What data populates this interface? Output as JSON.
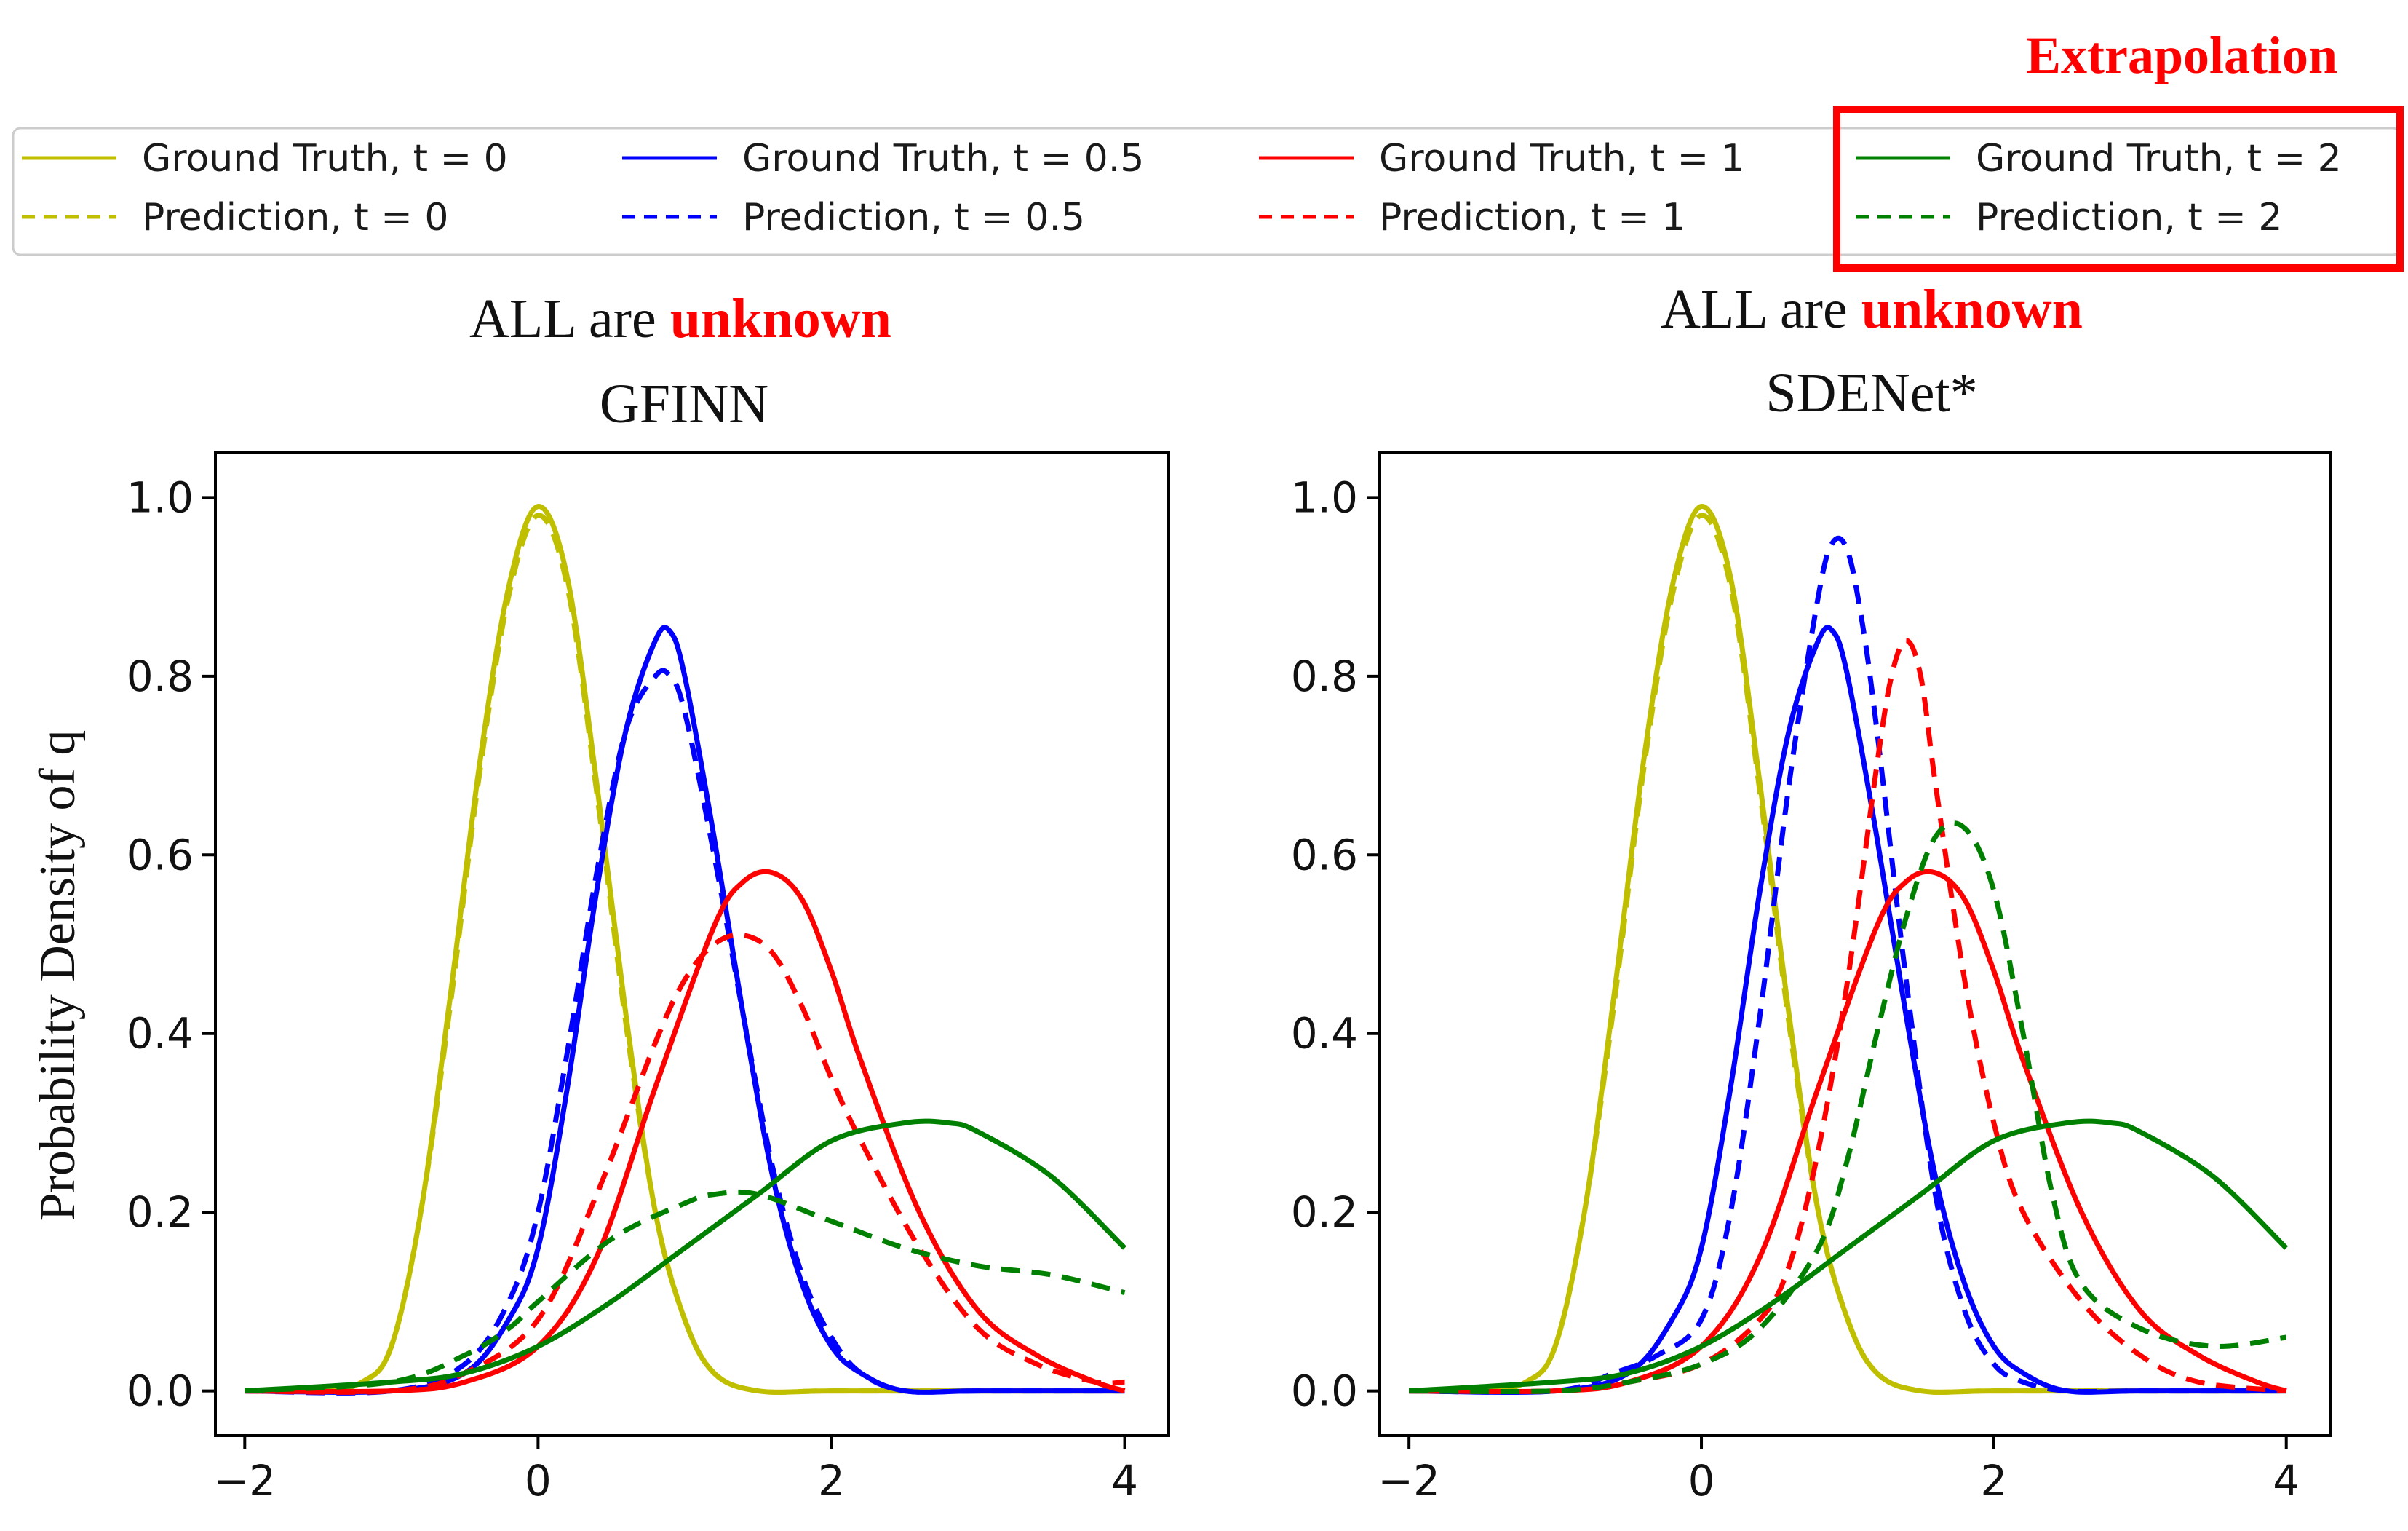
{
  "header": {
    "extrapolation_label": "Extrapolation"
  },
  "legend": {
    "entries": [
      {
        "label": "Ground Truth, t = 0",
        "color": "#bfbf00",
        "dashed": false
      },
      {
        "label": "Ground Truth, t = 0.5",
        "color": "#0000ff",
        "dashed": false
      },
      {
        "label": "Ground Truth, t = 1",
        "color": "#ff0000",
        "dashed": false
      },
      {
        "label": "Ground Truth, t = 2",
        "color": "#008000",
        "dashed": false
      },
      {
        "label": "Prediction, t = 0",
        "color": "#bfbf00",
        "dashed": true
      },
      {
        "label": "Prediction, t = 0.5",
        "color": "#0000ff",
        "dashed": true
      },
      {
        "label": "Prediction, t = 1",
        "color": "#ff0000",
        "dashed": true
      },
      {
        "label": "Prediction, t = 2",
        "color": "#008000",
        "dashed": true
      }
    ],
    "highlight_color": "#ff0000"
  },
  "panels": [
    {
      "title_prefix": "ALL are ",
      "title_highlight": "unknown",
      "subtitle": "GFINN",
      "ylabel": "Probability Density of q"
    },
    {
      "title_prefix": "ALL are ",
      "title_highlight": "unknown",
      "subtitle": "SDENet*",
      "ylabel": ""
    }
  ],
  "chart_data": [
    {
      "type": "line",
      "title": "ALL are unknown GFINN",
      "xlabel": "",
      "ylabel": "Probability Density of q",
      "xlim": [
        -2.2,
        4.3
      ],
      "ylim": [
        -0.05,
        1.05
      ],
      "xticks": [
        -2,
        0,
        2,
        4
      ],
      "xtick_labels": [
        "−2",
        "0",
        "2",
        "4"
      ],
      "yticks": [
        0.0,
        0.2,
        0.4,
        0.6,
        0.8,
        1.0
      ],
      "ytick_labels": [
        "0.0",
        "0.2",
        "0.4",
        "0.6",
        "0.8",
        "1.0"
      ],
      "grid": false,
      "series": [
        {
          "name": "Ground Truth, t = 0",
          "color": "#bfbf00",
          "dash": false,
          "x": [
            -2,
            -1.5,
            -1.2,
            -1,
            -0.8,
            -0.6,
            -0.4,
            -0.2,
            0,
            0.2,
            0.4,
            0.6,
            0.8,
            1,
            1.2,
            1.5,
            2,
            3,
            4
          ],
          "y": [
            0.0,
            0.0,
            0.01,
            0.05,
            0.2,
            0.44,
            0.7,
            0.9,
            0.99,
            0.91,
            0.68,
            0.42,
            0.2,
            0.08,
            0.02,
            0.0,
            0.0,
            0.0,
            0.0
          ]
        },
        {
          "name": "Prediction, t = 0",
          "color": "#bfbf00",
          "dash": true,
          "x": [
            -2,
            -1.5,
            -1.2,
            -1,
            -0.8,
            -0.6,
            -0.4,
            -0.2,
            0,
            0.2,
            0.4,
            0.6,
            0.8,
            1,
            1.2,
            1.5,
            2,
            3,
            4
          ],
          "y": [
            0.0,
            0.0,
            0.01,
            0.05,
            0.2,
            0.43,
            0.69,
            0.89,
            0.98,
            0.9,
            0.67,
            0.41,
            0.2,
            0.08,
            0.02,
            0.0,
            0.0,
            0.0,
            0.0
          ]
        },
        {
          "name": "Ground Truth, t = 0.5",
          "color": "#0000ff",
          "dash": false,
          "x": [
            -2,
            -1,
            -0.5,
            -0.2,
            0,
            0.2,
            0.4,
            0.6,
            0.8,
            0.9,
            1,
            1.2,
            1.4,
            1.6,
            1.8,
            2,
            2.2,
            2.5,
            3,
            4
          ],
          "y": [
            0.0,
            0.0,
            0.02,
            0.08,
            0.16,
            0.34,
            0.56,
            0.74,
            0.84,
            0.85,
            0.8,
            0.62,
            0.42,
            0.24,
            0.12,
            0.05,
            0.02,
            0.0,
            0.0,
            0.0
          ]
        },
        {
          "name": "Prediction, t = 0.5",
          "color": "#0000ff",
          "dash": true,
          "x": [
            -2,
            -1,
            -0.5,
            -0.2,
            0,
            0.2,
            0.4,
            0.6,
            0.8,
            0.9,
            1,
            1.2,
            1.4,
            1.6,
            1.8,
            2,
            2.2,
            2.5,
            3,
            4
          ],
          "y": [
            0.0,
            0.0,
            0.03,
            0.1,
            0.2,
            0.38,
            0.58,
            0.74,
            0.8,
            0.8,
            0.76,
            0.6,
            0.42,
            0.25,
            0.13,
            0.06,
            0.02,
            0.0,
            0.0,
            0.0
          ]
        },
        {
          "name": "Ground Truth, t = 1",
          "color": "#ff0000",
          "dash": false,
          "x": [
            -2,
            -1,
            -0.5,
            0,
            0.4,
            0.8,
            1.2,
            1.4,
            1.6,
            1.8,
            2,
            2.2,
            2.6,
            3,
            3.4,
            3.8,
            4
          ],
          "y": [
            0.0,
            0.0,
            0.01,
            0.05,
            0.15,
            0.34,
            0.52,
            0.57,
            0.58,
            0.55,
            0.47,
            0.37,
            0.2,
            0.09,
            0.04,
            0.01,
            0.0
          ]
        },
        {
          "name": "Prediction, t = 1",
          "color": "#ff0000",
          "dash": true,
          "x": [
            -2,
            -1,
            -0.5,
            0,
            0.4,
            0.8,
            1,
            1.2,
            1.4,
            1.6,
            1.8,
            2,
            2.2,
            2.6,
            3,
            3.4,
            3.8,
            4
          ],
          "y": [
            0.0,
            0.0,
            0.02,
            0.08,
            0.22,
            0.39,
            0.46,
            0.5,
            0.51,
            0.49,
            0.43,
            0.35,
            0.28,
            0.16,
            0.07,
            0.03,
            0.01,
            0.01
          ]
        },
        {
          "name": "Ground Truth, t = 2",
          "color": "#008000",
          "dash": false,
          "x": [
            -2,
            -1,
            -0.5,
            0,
            0.5,
            1,
            1.5,
            2,
            2.5,
            2.8,
            3,
            3.5,
            4
          ],
          "y": [
            0.0,
            0.01,
            0.02,
            0.05,
            0.1,
            0.16,
            0.22,
            0.28,
            0.3,
            0.3,
            0.29,
            0.24,
            0.16
          ]
        },
        {
          "name": "Prediction, t = 2",
          "color": "#008000",
          "dash": true,
          "x": [
            -2,
            -1,
            -0.5,
            -0.2,
            0,
            0.5,
            1,
            1.2,
            1.5,
            2,
            2.5,
            3,
            3.5,
            4
          ],
          "y": [
            0.0,
            0.01,
            0.04,
            0.07,
            0.1,
            0.17,
            0.21,
            0.22,
            0.22,
            0.19,
            0.16,
            0.14,
            0.13,
            0.11
          ]
        }
      ]
    },
    {
      "type": "line",
      "title": "ALL are unknown SDENet*",
      "xlabel": "",
      "ylabel": "",
      "xlim": [
        -2.2,
        4.3
      ],
      "ylim": [
        -0.05,
        1.05
      ],
      "xticks": [
        -2,
        0,
        2,
        4
      ],
      "xtick_labels": [
        "−2",
        "0",
        "2",
        "4"
      ],
      "yticks": [
        0.0,
        0.2,
        0.4,
        0.6,
        0.8,
        1.0
      ],
      "ytick_labels": [
        "0.0",
        "0.2",
        "0.4",
        "0.6",
        "0.8",
        "1.0"
      ],
      "grid": false,
      "series": [
        {
          "name": "Ground Truth, t = 0",
          "color": "#bfbf00",
          "dash": false,
          "x": [
            -2,
            -1.5,
            -1.2,
            -1,
            -0.8,
            -0.6,
            -0.4,
            -0.2,
            0,
            0.2,
            0.4,
            0.6,
            0.8,
            1,
            1.2,
            1.5,
            2,
            3,
            4
          ],
          "y": [
            0.0,
            0.0,
            0.01,
            0.05,
            0.2,
            0.44,
            0.7,
            0.9,
            0.99,
            0.91,
            0.68,
            0.42,
            0.2,
            0.08,
            0.02,
            0.0,
            0.0,
            0.0,
            0.0
          ]
        },
        {
          "name": "Prediction, t = 0",
          "color": "#bfbf00",
          "dash": true,
          "x": [
            -2,
            -1.5,
            -1.2,
            -1,
            -0.8,
            -0.6,
            -0.4,
            -0.2,
            0,
            0.2,
            0.4,
            0.6,
            0.8,
            1,
            1.2,
            1.5,
            2,
            3,
            4
          ],
          "y": [
            0.0,
            0.0,
            0.01,
            0.05,
            0.2,
            0.43,
            0.69,
            0.89,
            0.98,
            0.9,
            0.67,
            0.41,
            0.2,
            0.08,
            0.02,
            0.0,
            0.0,
            0.0,
            0.0
          ]
        },
        {
          "name": "Ground Truth, t = 0.5",
          "color": "#0000ff",
          "dash": false,
          "x": [
            -2,
            -1,
            -0.5,
            -0.2,
            0,
            0.2,
            0.4,
            0.6,
            0.8,
            0.9,
            1,
            1.2,
            1.4,
            1.6,
            1.8,
            2,
            2.2,
            2.5,
            3,
            4
          ],
          "y": [
            0.0,
            0.0,
            0.02,
            0.08,
            0.16,
            0.34,
            0.56,
            0.74,
            0.84,
            0.85,
            0.8,
            0.62,
            0.42,
            0.24,
            0.12,
            0.05,
            0.02,
            0.0,
            0.0,
            0.0
          ]
        },
        {
          "name": "Prediction, t = 0.5",
          "color": "#0000ff",
          "dash": true,
          "x": [
            -2,
            -1,
            -0.6,
            -0.3,
            0,
            0.2,
            0.4,
            0.6,
            0.8,
            0.9,
            1,
            1.1,
            1.2,
            1.4,
            1.6,
            1.8,
            2,
            2.2,
            2.5,
            3,
            4
          ],
          "y": [
            0.0,
            0.0,
            0.02,
            0.04,
            0.08,
            0.2,
            0.42,
            0.68,
            0.89,
            0.95,
            0.94,
            0.86,
            0.74,
            0.46,
            0.22,
            0.09,
            0.03,
            0.01,
            0.0,
            0.0,
            0.0
          ]
        },
        {
          "name": "Ground Truth, t = 1",
          "color": "#ff0000",
          "dash": false,
          "x": [
            -2,
            -1,
            -0.5,
            0,
            0.4,
            0.8,
            1.2,
            1.4,
            1.6,
            1.8,
            2,
            2.2,
            2.6,
            3,
            3.4,
            3.8,
            4
          ],
          "y": [
            0.0,
            0.0,
            0.01,
            0.05,
            0.15,
            0.34,
            0.52,
            0.57,
            0.58,
            0.55,
            0.47,
            0.37,
            0.2,
            0.09,
            0.04,
            0.01,
            0.0
          ]
        },
        {
          "name": "Prediction, t = 1",
          "color": "#ff0000",
          "dash": true,
          "x": [
            -2,
            -1,
            -0.5,
            0,
            0.4,
            0.6,
            0.8,
            1,
            1.2,
            1.3,
            1.4,
            1.5,
            1.6,
            1.8,
            2,
            2.2,
            2.6,
            3,
            3.4,
            4
          ],
          "y": [
            0.0,
            0.0,
            0.01,
            0.03,
            0.08,
            0.14,
            0.27,
            0.46,
            0.7,
            0.8,
            0.84,
            0.8,
            0.68,
            0.46,
            0.3,
            0.2,
            0.1,
            0.04,
            0.01,
            0.0
          ]
        },
        {
          "name": "Ground Truth, t = 2",
          "color": "#008000",
          "dash": false,
          "x": [
            -2,
            -1,
            -0.5,
            0,
            0.5,
            1,
            1.5,
            2,
            2.5,
            2.8,
            3,
            3.5,
            4
          ],
          "y": [
            0.0,
            0.01,
            0.02,
            0.05,
            0.1,
            0.16,
            0.22,
            0.28,
            0.3,
            0.3,
            0.29,
            0.24,
            0.16
          ]
        },
        {
          "name": "Prediction, t = 2",
          "color": "#008000",
          "dash": true,
          "x": [
            -2,
            -1,
            -0.5,
            0,
            0.4,
            0.8,
            1,
            1.2,
            1.4,
            1.6,
            1.8,
            2,
            2.2,
            2.4,
            2.6,
            3,
            3.5,
            4
          ],
          "y": [
            0.0,
            0.0,
            0.01,
            0.03,
            0.07,
            0.16,
            0.26,
            0.4,
            0.53,
            0.62,
            0.63,
            0.56,
            0.4,
            0.22,
            0.12,
            0.07,
            0.05,
            0.06
          ]
        }
      ]
    }
  ]
}
